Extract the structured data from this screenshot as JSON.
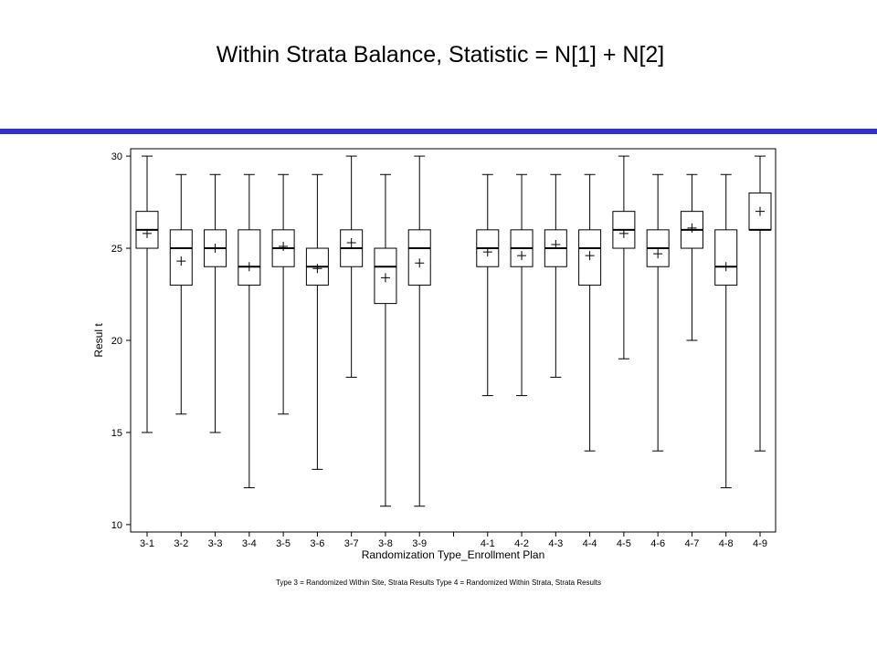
{
  "chart_data": {
    "type": "box",
    "title": "Within Strata Balance, Statistic = N[1] + N[2]",
    "y_label": "Resul t",
    "x_label": "Randomization Type_Enrollment Plan",
    "footnote": "Type 3 = Randomized Within Site, Strata Results   Type 4 = Randomized Within Strata, Strata Results",
    "categories": [
      "3-1",
      "3-2",
      "3-3",
      "3-4",
      "3-5",
      "3-6",
      "3-7",
      "3-8",
      "3-9",
      null,
      "4-1",
      "4-2",
      "4-3",
      "4-4",
      "4-5",
      "4-6",
      "4-7",
      "4-8",
      "4-9"
    ],
    "min": [
      15,
      16,
      15,
      12,
      16,
      13,
      18,
      11,
      11,
      null,
      17,
      17,
      18,
      14,
      19,
      14,
      20,
      12,
      14
    ],
    "q1": [
      25,
      23,
      24,
      23,
      24,
      23,
      24,
      22,
      23,
      null,
      24,
      24,
      24,
      23,
      25,
      24,
      25,
      23,
      26
    ],
    "median": [
      26,
      25,
      25,
      24,
      25,
      24,
      25,
      24,
      25,
      null,
      25,
      25,
      25,
      25,
      26,
      25,
      26,
      24,
      26
    ],
    "q3": [
      27,
      26,
      26,
      26,
      26,
      25,
      26,
      25,
      26,
      null,
      26,
      26,
      26,
      26,
      27,
      26,
      27,
      26,
      28
    ],
    "max": [
      30,
      29,
      29,
      29,
      29,
      29,
      30,
      29,
      30,
      null,
      29,
      29,
      29,
      29,
      30,
      29,
      29,
      29,
      30
    ],
    "mean": [
      25.8,
      24.3,
      25.0,
      24.0,
      25.1,
      23.9,
      25.3,
      23.4,
      24.2,
      null,
      24.8,
      24.6,
      25.2,
      24.6,
      25.8,
      24.7,
      26.1,
      24.0,
      27.0
    ],
    "ylim": [
      9.6,
      30.4
    ],
    "yticks": [
      10,
      15,
      20,
      25,
      30
    ],
    "color": "#000000",
    "banner_color": "#3333cc"
  }
}
